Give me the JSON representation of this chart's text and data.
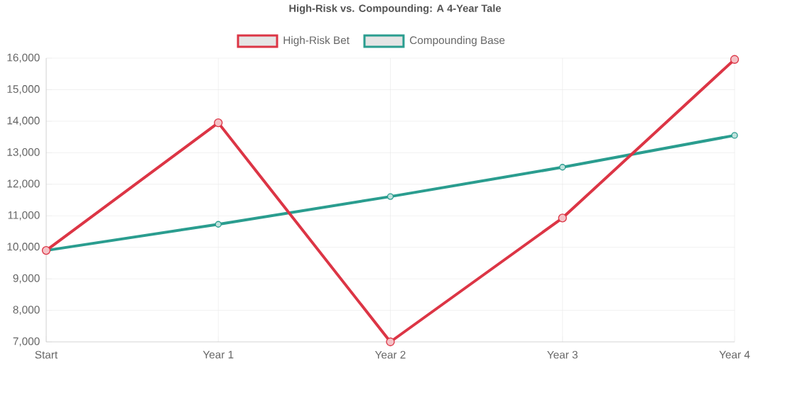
{
  "chart_data": {
    "type": "line",
    "title": "High-Risk vs. Compounding: A 4-Year Tale",
    "categories": [
      "Start",
      "Year 1",
      "Year 2",
      "Year 3",
      "Year 4"
    ],
    "series": [
      {
        "name": "High-Risk Bet",
        "color": "#dc3545",
        "values": [
          9900,
          13950,
          7000,
          10930,
          15960
        ]
      },
      {
        "name": "Compounding Base",
        "color": "#2a9d8f",
        "values": [
          9900,
          10730,
          11610,
          12540,
          13550
        ]
      }
    ],
    "ylim": [
      7000,
      16000
    ],
    "yticks": [
      {
        "value": 7000,
        "label": "7,000"
      },
      {
        "value": 8000,
        "label": "8,000"
      },
      {
        "value": 9000,
        "label": "9,000"
      },
      {
        "value": 10000,
        "label": "10,000"
      },
      {
        "value": 11000,
        "label": "11,000"
      },
      {
        "value": 12000,
        "label": "12,000"
      },
      {
        "value": 13000,
        "label": "13,000"
      },
      {
        "value": 14000,
        "label": "14,000"
      },
      {
        "value": 15000,
        "label": "15,000"
      },
      {
        "value": 16000,
        "label": "16,000"
      }
    ],
    "grid": true,
    "legend": "top",
    "marker": "circle",
    "line_style": "solid"
  }
}
